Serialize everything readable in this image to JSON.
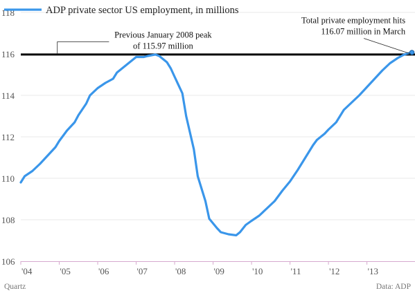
{
  "chart_data": {
    "type": "line",
    "legend": {
      "label": "ADP private sector US employment, in millions",
      "color": "#3a96ea",
      "placement": "top-left"
    },
    "x_ticks": [
      "'04",
      "'05",
      "'06",
      "'07",
      "'08",
      "'09",
      "'10",
      "'11",
      "'12",
      "'13"
    ],
    "x_range": [
      2004.0,
      2014.25
    ],
    "ylim": [
      106,
      118
    ],
    "y_ticks": [
      106,
      108,
      110,
      112,
      114,
      116,
      118
    ],
    "grid": "horizontal",
    "series": [
      {
        "color": "#3a96ea",
        "points": [
          [
            2004.0,
            109.8
          ],
          [
            2004.1,
            110.1
          ],
          [
            2004.3,
            110.35
          ],
          [
            2004.5,
            110.7
          ],
          [
            2004.7,
            111.1
          ],
          [
            2004.9,
            111.5
          ],
          [
            2005.0,
            111.8
          ],
          [
            2005.2,
            112.3
          ],
          [
            2005.4,
            112.7
          ],
          [
            2005.5,
            113.05
          ],
          [
            2005.7,
            113.6
          ],
          [
            2005.8,
            114.0
          ],
          [
            2006.0,
            114.35
          ],
          [
            2006.2,
            114.6
          ],
          [
            2006.4,
            114.8
          ],
          [
            2006.5,
            115.1
          ],
          [
            2006.7,
            115.4
          ],
          [
            2006.9,
            115.7
          ],
          [
            2007.0,
            115.85
          ],
          [
            2007.2,
            115.85
          ],
          [
            2007.3,
            115.9
          ],
          [
            2007.5,
            115.97
          ],
          [
            2007.6,
            115.9
          ],
          [
            2007.8,
            115.6
          ],
          [
            2007.9,
            115.3
          ],
          [
            2008.0,
            114.9
          ],
          [
            2008.2,
            114.1
          ],
          [
            2008.3,
            113.0
          ],
          [
            2008.5,
            111.4
          ],
          [
            2008.6,
            110.1
          ],
          [
            2008.8,
            108.9
          ],
          [
            2008.9,
            108.05
          ],
          [
            2009.1,
            107.6
          ],
          [
            2009.2,
            107.4
          ],
          [
            2009.4,
            107.3
          ],
          [
            2009.6,
            107.25
          ],
          [
            2009.7,
            107.4
          ],
          [
            2009.85,
            107.75
          ],
          [
            2010.0,
            107.95
          ],
          [
            2010.2,
            108.2
          ],
          [
            2010.4,
            108.55
          ],
          [
            2010.6,
            108.9
          ],
          [
            2010.8,
            109.4
          ],
          [
            2011.0,
            109.85
          ],
          [
            2011.2,
            110.4
          ],
          [
            2011.4,
            111.0
          ],
          [
            2011.6,
            111.6
          ],
          [
            2011.7,
            111.85
          ],
          [
            2011.9,
            112.15
          ],
          [
            2012.0,
            112.35
          ],
          [
            2012.2,
            112.7
          ],
          [
            2012.4,
            113.3
          ],
          [
            2012.6,
            113.65
          ],
          [
            2012.8,
            114.0
          ],
          [
            2013.0,
            114.4
          ],
          [
            2013.2,
            114.8
          ],
          [
            2013.4,
            115.2
          ],
          [
            2013.6,
            115.55
          ],
          [
            2013.8,
            115.8
          ],
          [
            2013.95,
            115.95
          ],
          [
            2014.05,
            116.02
          ],
          [
            2014.17,
            116.07
          ]
        ]
      }
    ],
    "reference_line": {
      "value": 115.97,
      "color": "#000000"
    },
    "annotations": [
      {
        "lines": [
          "Previous January 2008 peak",
          "of 115.97 million"
        ],
        "x": 2007.7,
        "y": 116.25,
        "anchor": "middle",
        "pointer_x": 2004.95
      },
      {
        "lines": [
          "Total private employment hits",
          "116.07 million in March"
        ],
        "x": 2014.0,
        "y": 116.95,
        "anchor": "end",
        "pointer_x": 2014.17
      }
    ],
    "footer": {
      "left": "Quartz",
      "right": "Data: ADP"
    }
  }
}
